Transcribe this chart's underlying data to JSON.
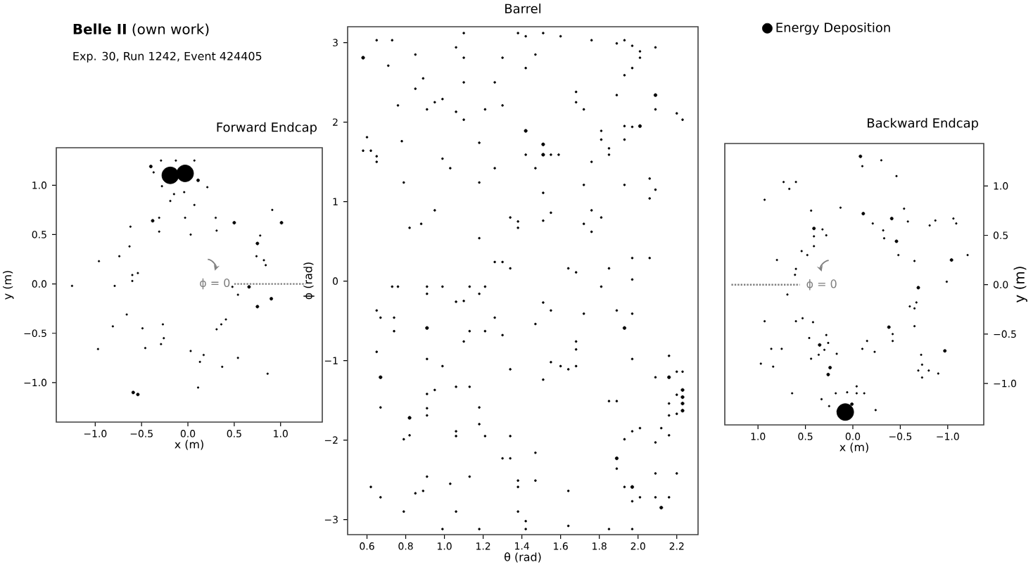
{
  "chart_data": [
    {
      "type": "bubble",
      "title": "Forward Endcap",
      "xlabel": "x (m)",
      "ylabel": "y (m)",
      "xlim": [
        -1.42,
        1.45
      ],
      "ylim": [
        -1.4,
        1.38
      ],
      "xticks": [
        {
          "value": -1,
          "label": "−1.0"
        },
        {
          "value": -0.5,
          "label": "−0.5"
        },
        {
          "value": 0,
          "label": "0.0"
        },
        0.5,
        {
          "value": 1,
          "label": "1.0"
        }
      ],
      "yticks": [
        {
          "value": -1,
          "label": "−1.0"
        },
        {
          "value": -0.5,
          "label": "−0.5"
        },
        {
          "value": 0,
          "label": "0.0"
        },
        0.5,
        {
          "value": 1,
          "label": "1.0"
        }
      ],
      "annotations": [
        "**Belle II** (own work)",
        "Exp. 30, Run 1242, Event 424405",
        "ϕ = 0"
      ],
      "series": [
        {
          "type": "line",
          "color": "#808080",
          "line_style": "dotted",
          "x": [
            0.5,
            1.27
          ],
          "values": [
            0,
            0
          ]
        },
        {
          "color": "#000000",
          "x": [
            -0.19,
            -0.03,
            -0.4,
            -0.29,
            -0.13,
            0.07,
            -0.37,
            0.11,
            -0.28,
            0.21,
            -0.15,
            -0.04,
            -0.19,
            0.07,
            0.91,
            1.01,
            0.5,
            0.3,
            0.31,
            -0.03,
            -0.31,
            -0.38,
            -0.31,
            -0.62,
            -0.63,
            0.03,
            0.78,
            0.75,
            0.74,
            0.82,
            0.84,
            -0.74,
            -0.96,
            -0.6,
            -0.54,
            -0.6,
            -0.79,
            -1.25,
            0.48,
            0.66,
            0.54,
            0.9,
            0.75,
            -0.66,
            -0.81,
            -0.49,
            -0.27,
            -0.26,
            -0.29,
            -0.46,
            -0.97,
            0.03,
            0.36,
            0.41,
            0.31,
            0.17,
            0.13,
            0.37,
            0.54,
            0.86,
            0.11,
            -0.59,
            -0.54
          ],
          "values": [
            1.1,
            1.12,
            1.19,
            1.25,
            1.25,
            1.25,
            1.13,
            1.05,
            0.99,
            0.98,
            0.91,
            0.93,
            0.84,
            0.8,
            0.75,
            0.62,
            0.62,
            0.67,
            0.54,
            0.67,
            0.67,
            0.64,
            0.53,
            0.58,
            0.38,
            0.5,
            0.49,
            0.41,
            0.28,
            0.24,
            0.19,
            0.28,
            0.23,
            0.09,
            0.11,
            0.03,
            -0.02,
            -0.02,
            -0.03,
            -0.03,
            -0.11,
            -0.15,
            -0.23,
            -0.31,
            -0.43,
            -0.45,
            -0.41,
            -0.55,
            -0.61,
            -0.65,
            -0.66,
            -0.68,
            -0.41,
            -0.36,
            -0.46,
            -0.72,
            -0.79,
            -0.84,
            -0.75,
            -0.91,
            -1.05,
            -1.1,
            -1.12
          ],
          "sizes": [
            1,
            1,
            0.03,
            0.01,
            0.01,
            0.01,
            0.01,
            0.03,
            0.01,
            0.01,
            0.01,
            0.01,
            0.01,
            0.01,
            0.01,
            0.03,
            0.03,
            0.01,
            0.01,
            0.01,
            0.01,
            0.03,
            0.01,
            0.01,
            0.01,
            0.01,
            0.01,
            0.03,
            0.01,
            0.01,
            0.01,
            0.01,
            0.01,
            0.01,
            0.01,
            0.01,
            0.01,
            0.01,
            0.01,
            0.03,
            0.01,
            0.03,
            0.03,
            0.01,
            0.01,
            0.01,
            0.01,
            0.01,
            0.01,
            0.01,
            0.01,
            0.01,
            0.01,
            0.01,
            0.01,
            0.01,
            0.01,
            0.01,
            0.01,
            0.01,
            0.01,
            0.03,
            0.03
          ]
        }
      ]
    },
    {
      "type": "bubble",
      "title": "Barrel",
      "xlabel": "θ (rad)",
      "ylabel": "ϕ (rad)",
      "xlim": [
        0.5,
        2.31
      ],
      "ylim": [
        -3.19,
        3.2
      ],
      "xticks": [
        0.6,
        0.8,
        {
          "value": 1,
          "label": "1.0"
        },
        1.2,
        1.4,
        1.6,
        1.8,
        {
          "value": 2,
          "label": "2.0"
        },
        2.2
      ],
      "yticks": [
        {
          "value": -3,
          "label": "−3"
        },
        {
          "value": -2,
          "label": "−2"
        },
        {
          "value": -1,
          "label": "−1"
        },
        0,
        1,
        2,
        3
      ],
      "legend": "right",
      "series": [
        {
          "name": "Energy Deposition",
          "color": "#000000",
          "x": [
            0.58,
            0.65,
            0.73,
            0.71,
            0.85,
            0.89,
            0.85,
            0.76,
            0.91,
            0.95,
            0.99,
            1.06,
            1.1,
            1.1,
            1.1,
            1.06,
            1.1,
            1.21,
            1.26,
            1.3,
            1.3,
            1.38,
            1.42,
            1.51,
            1.6,
            1.47,
            1.42,
            1.76,
            1.68,
            1.68,
            1.72,
            1.89,
            1.93,
            1.97,
            2.01,
            2.01,
            1.97,
            1.93,
            2.09,
            1.89,
            2.09,
            2.09,
            2.2,
            2.23,
            2.01,
            1.97,
            1.93,
            1.81,
            1.81,
            1.85,
            1.85,
            1.93,
            1.76,
            1.42,
            1.51,
            1.51,
            1.55,
            1.59,
            1.42,
            1.47,
            1.26,
            1.18,
            1.18,
            1.03,
            0.99,
            0.78,
            0.79,
            0.6,
            0.58,
            0.62,
            0.65,
            0.65,
            1.51,
            1.72,
            1.93,
            2.06,
            2.09,
            2.06,
            1.76,
            1.81,
            1.55,
            1.51,
            1.34,
            1.38,
            1.38,
            1.72,
            1.76,
            0.95,
            0.88,
            0.82,
            1.18,
            1.26,
            1.3,
            1.34,
            1.64,
            1.68,
            1.85,
            1.97,
            2.06,
            1.97,
            0.73,
            0.76,
            0.91,
            0.99,
            1.13,
            1.21,
            0.91,
            1.18,
            1.06,
            1.1,
            1.81,
            0.65,
            0.67,
            0.74,
            0.74,
            0.91,
            1.13,
            1.21,
            1.26,
            1.3,
            1.1,
            1.47,
            1.51,
            1.55,
            1.72,
            1.89,
            1.97,
            1.93,
            1.68,
            1.68,
            0.65,
            0.67,
            0.91,
            0.99,
            1.13,
            1.06,
            0.95,
            0.91,
            1.34,
            1.55,
            1.6,
            1.64,
            1.68,
            1.51,
            1.97,
            2.09,
            2.16,
            2.2,
            2.23,
            2.23,
            2.23,
            2.23,
            2.23,
            2.2,
            2.16,
            2.16,
            2.16,
            2.2,
            2.12,
            2.09,
            2.01,
            1.97,
            1.93,
            1.85,
            1.89,
            2.16,
            0.67,
            0.82,
            0.91,
            0.91,
            1.18,
            1.18,
            1.06,
            1.06,
            0.82,
            0.79,
            1.21,
            1.34,
            1.3,
            1.34,
            1.47,
            1.89,
            1.89,
            1.13,
            0.91,
            1.03,
            1.38,
            1.47,
            1.38,
            1.64,
            1.93,
            1.97,
            1.97,
            2.01,
            2.09,
            2.09,
            2.16,
            2.2,
            2.12,
            0.62,
            0.67,
            0.85,
            0.89,
            0.79,
            1.06,
            1.38,
            1.42,
            1.42,
            0.99,
            1.18,
            1.64,
            1.85,
            1.97
          ],
          "values": [
            2.81,
            3.03,
            3.03,
            2.71,
            2.85,
            2.55,
            2.42,
            2.21,
            2.16,
            2.25,
            2.29,
            2.94,
            3.12,
            2.81,
            2.5,
            2.13,
            2.03,
            2.16,
            2.5,
            2.81,
            2.21,
            3.12,
            3.08,
            3.12,
            3.08,
            2.85,
            2.68,
            3.03,
            2.38,
            2.25,
            2.16,
            2.99,
            3.03,
            2.96,
            2.89,
            2.81,
            2.68,
            2.59,
            2.94,
            2.34,
            2.34,
            2.16,
            2.11,
            2.03,
            1.95,
            1.94,
            1.95,
            1.89,
            1.78,
            1.67,
            1.59,
            1.78,
            1.5,
            1.89,
            1.72,
            1.59,
            1.59,
            1.59,
            1.59,
            1.42,
            1.42,
            1.74,
            1.24,
            1.42,
            1.54,
            1.76,
            1.24,
            1.81,
            1.64,
            1.64,
            1.57,
            1.5,
            1.11,
            1.21,
            1.21,
            1.29,
            1.15,
            1.04,
            0.89,
            0.8,
            0.86,
            0.76,
            0.8,
            0.75,
            0.67,
            0.72,
            0.62,
            0.89,
            0.72,
            0.67,
            0.54,
            0.24,
            0.24,
            0.16,
            0.16,
            0.11,
            0.16,
            0.29,
            0.29,
            0.02,
            -0.07,
            -0.07,
            -0.07,
            -0.07,
            -0.07,
            -0.07,
            -0.16,
            -0.16,
            -0.26,
            -0.25,
            -0.07,
            -0.37,
            -0.46,
            -0.46,
            -0.63,
            -0.59,
            -0.63,
            -0.63,
            -0.46,
            -0.68,
            -0.76,
            -0.54,
            -0.27,
            -0.37,
            -0.41,
            -0.37,
            -0.41,
            -0.59,
            -0.76,
            -0.86,
            -0.89,
            -1.21,
            -0.98,
            -1.07,
            -1.33,
            -1.33,
            -1.37,
            -1.42,
            -1.11,
            -1.02,
            -1.07,
            -1.11,
            -1.07,
            -1.24,
            -0.98,
            -1.21,
            -1.21,
            -1.14,
            -1.14,
            -1.37,
            -1.46,
            -1.54,
            -1.63,
            -1.43,
            -0.94,
            -1.54,
            -1.69,
            -1.67,
            -1.85,
            -2.03,
            -1.85,
            -1.89,
            -1.99,
            -1.51,
            -1.51,
            -1.94,
            -1.59,
            -1.72,
            -1.6,
            -1.69,
            -1.59,
            -1.8,
            -1.89,
            -1.95,
            -1.94,
            -1.99,
            -1.95,
            -1.95,
            -2.23,
            -2.23,
            -2.16,
            -2.23,
            -2.36,
            -2.46,
            -2.46,
            -2.55,
            -2.51,
            -2.51,
            -2.59,
            -2.64,
            -2.59,
            -2.59,
            -2.77,
            -2.72,
            -2.42,
            -2.72,
            -2.72,
            -2.42,
            -2.85,
            -2.59,
            -2.72,
            -2.67,
            -2.64,
            -2.9,
            -2.9,
            -2.9,
            -3.02,
            -3.12,
            -3.12,
            -3.12,
            -3.08,
            -3.12,
            -3.12
          ],
          "sizes": [
            1,
            0.4,
            0.4,
            0.4,
            0.4,
            0.4,
            0.4,
            0.4,
            0.4,
            0.4,
            0.4,
            0.4,
            0.4,
            0.4,
            0.4,
            0.4,
            0.4,
            0.4,
            0.4,
            0.4,
            0.4,
            0.4,
            0.4,
            0.4,
            0.4,
            0.4,
            0.4,
            0.4,
            0.4,
            0.4,
            0.4,
            0.4,
            0.4,
            0.4,
            0.4,
            0.4,
            0.4,
            0.4,
            0.4,
            0.4,
            1,
            0.4,
            0.4,
            0.4,
            1,
            0.4,
            0.4,
            0.4,
            0.4,
            0.4,
            0.4,
            0.4,
            0.4,
            1,
            1,
            1,
            0.4,
            0.4,
            0.4,
            0.4,
            0.4,
            0.4,
            0.4,
            0.4,
            0.4,
            0.4,
            0.4,
            0.4,
            0.4,
            0.4,
            0.4,
            0.4,
            0.4,
            0.4,
            0.4,
            0.4,
            0.4,
            0.4,
            0.4,
            0.4,
            0.4,
            0.4,
            0.4,
            0.4,
            0.4,
            0.4,
            0.4,
            0.4,
            0.4,
            0.4,
            0.4,
            0.4,
            0.4,
            0.4,
            0.4,
            0.4,
            0.4,
            0.4,
            0.4,
            0.4,
            0.4,
            0.4,
            0.4,
            0.4,
            0.4,
            0.4,
            0.4,
            0.4,
            0.4,
            0.4,
            0.4,
            0.4,
            0.4,
            0.4,
            0.4,
            1,
            0.4,
            0.4,
            0.4,
            0.4,
            0.4,
            0.4,
            0.4,
            0.4,
            0.4,
            0.4,
            0.4,
            1,
            0.4,
            0.4,
            0.4,
            1,
            0.4,
            0.4,
            0.4,
            0.4,
            0.4,
            0.4,
            0.4,
            0.4,
            0.4,
            0.4,
            0.4,
            0.4,
            0.4,
            0.4,
            1,
            0.4,
            0.4,
            1,
            1,
            1,
            1,
            0.4,
            0.4,
            0.4,
            0.4,
            0.4,
            0.4,
            0.4,
            0.4,
            0.4,
            0.4,
            0.4,
            0.4,
            0.4,
            0.4,
            1,
            0.4,
            0.4,
            0.4,
            0.4,
            0.4,
            0.4,
            0.4,
            0.4,
            0.4,
            0.4,
            0.4,
            0.4,
            0.4,
            1,
            0.4,
            0.4,
            0.4,
            0.4,
            0.4,
            0.4,
            0.4,
            0.4,
            0.4,
            1,
            0.4,
            0.4,
            0.4,
            0.4,
            0.4,
            0.4,
            1,
            0.4,
            0.4,
            0.4,
            0.4,
            0.4,
            0.4,
            0.4,
            0.4,
            0.4,
            0.4,
            0.4,
            0.4,
            0.4,
            0.4
          ]
        }
      ]
    },
    {
      "type": "bubble",
      "title": "Backward Endcap",
      "xlabel": "x (m)",
      "ylabel": "y (m)",
      "xlim": [
        1.35,
        -1.38
      ],
      "ylim": [
        -1.42,
        1.43
      ],
      "xticks": [
        {
          "value": -1,
          "label": "−1.0"
        },
        {
          "value": -0.5,
          "label": "−0.5"
        },
        {
          "value": 0,
          "label": "0.0"
        },
        0.5,
        {
          "value": 1,
          "label": "1.0"
        }
      ],
      "yticks": [
        {
          "value": -1,
          "label": "−1.0"
        },
        {
          "value": -0.5,
          "label": "−0.5"
        },
        {
          "value": 0,
          "label": "0.0"
        },
        0.5,
        {
          "value": 1,
          "label": "1.0"
        }
      ],
      "annotations": [
        "ϕ = 0"
      ],
      "series": [
        {
          "type": "line",
          "color": "#808080",
          "line_style": "dotted",
          "x": [
            1.28,
            0.56
          ],
          "values": [
            0,
            0
          ]
        },
        {
          "color": "#000000",
          "x": [
            0.08,
            0.33,
            0.25,
            0.16,
            0.18,
            0.06,
            -0.04,
            -0.12,
            -0.04,
            0.01,
            -0.24,
            0.64,
            -0.08,
            -0.1,
            -0.3,
            -0.46,
            0.73,
            0.67,
            0.6,
            0.93,
            0.44,
            0.13,
            -0.11,
            -0.21,
            -0.41,
            -0.54,
            -0.58,
            -0.87,
            -0.81,
            -1.06,
            -1.09,
            0.41,
            0.32,
            0.28,
            0.41,
            -0.32,
            -0.33,
            -0.46,
            0.41,
            0.54,
            0.48,
            -0.48,
            -0.65,
            -1.04,
            -1.21,
            0.8,
            0.6,
            0.61,
            0.69,
            -0.99,
            -0.69,
            -0.67,
            -0.6,
            -0.65,
            -0.65,
            0.93,
            0.6,
            0.53,
            0.42,
            0.46,
            0.28,
            0.26,
            0.35,
            0.3,
            0.36,
            0.17,
            0.24,
            0.26,
            0.44,
            -0.38,
            -0.42,
            -0.42,
            -0.15,
            -0.1,
            -0.23,
            -0.97,
            -0.72,
            -0.73,
            -0.69,
            -0.73,
            -0.8,
            -0.9,
            0.97,
            0.84,
            0.86,
            0.75
          ],
          "values": [
            -1.29,
            -1.16,
            -1.23,
            -1.28,
            -1.1,
            -1.09,
            -1.1,
            -1.1,
            -1.03,
            -1.21,
            -1.27,
            -1.1,
            1.3,
            1.2,
            1.26,
            1.1,
            1.04,
            0.97,
            1.04,
            0.86,
            0.75,
            0.78,
            0.72,
            0.62,
            0.67,
            0.77,
            0.64,
            0.65,
            0.6,
            0.67,
            0.62,
            0.57,
            0.56,
            0.5,
            0.49,
            0.55,
            0.47,
            0.44,
            0.39,
            0.34,
            0.3,
            0.3,
            0.24,
            0.25,
            0.3,
            0.25,
            0.16,
            0.1,
            -0.1,
            0.03,
            -0.03,
            -0.18,
            -0.22,
            -0.24,
            -0.42,
            -0.37,
            -0.37,
            -0.34,
            -0.38,
            -0.54,
            -0.51,
            -0.59,
            -0.61,
            -0.66,
            -0.71,
            -0.7,
            -0.84,
            -0.91,
            -0.75,
            -0.43,
            -0.5,
            -0.57,
            -0.57,
            -0.65,
            -0.68,
            -0.67,
            -0.71,
            -0.81,
            -0.87,
            -0.94,
            -0.87,
            -0.9,
            -0.8,
            -0.83,
            -0.65,
            -0.65
          ],
          "sizes": [
            1,
            0.01,
            0.01,
            0.01,
            0.01,
            0.01,
            0.01,
            0.01,
            0.01,
            0.03,
            0.01,
            0.01,
            0.03,
            0.01,
            0.01,
            0.01,
            0.01,
            0.01,
            0.01,
            0.01,
            0.01,
            0.01,
            0.03,
            0.01,
            0.03,
            0.01,
            0.01,
            0.01,
            0.01,
            0.01,
            0.01,
            0.03,
            0.01,
            0.01,
            0.01,
            0.01,
            0.01,
            0.03,
            0.01,
            0.01,
            0.01,
            0.01,
            0.01,
            0.03,
            0.01,
            0.01,
            0.01,
            0.01,
            0.01,
            0.01,
            0.03,
            0.01,
            0.01,
            0.01,
            0.01,
            0.01,
            0.01,
            0.01,
            0.01,
            0.01,
            0.01,
            0.01,
            0.03,
            0.01,
            0.01,
            0.01,
            0.03,
            0.03,
            0.01,
            0.03,
            0.01,
            0.01,
            0.01,
            0.01,
            0.01,
            0.03,
            0.01,
            0.01,
            0.01,
            0.01,
            0.01,
            0.01,
            0.01,
            0.01,
            0.01,
            0.01
          ]
        }
      ]
    }
  ]
}
